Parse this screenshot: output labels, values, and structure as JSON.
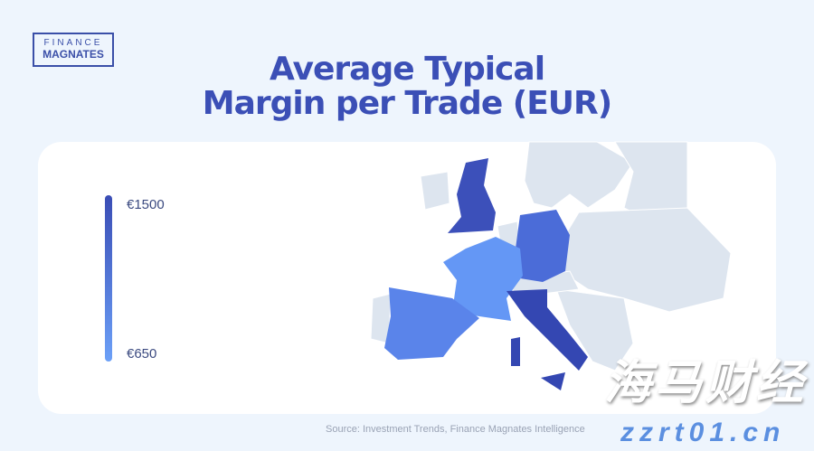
{
  "logo": {
    "line1": "FINANCE",
    "line2": "MAGNATES"
  },
  "title": {
    "line1": "Average Typical",
    "line2": "Margin per Trade (EUR)"
  },
  "legend": {
    "max": "€1500",
    "min": "€650",
    "colors": {
      "high": "#3a4db5",
      "low": "#6ca0f7"
    }
  },
  "countries": [
    {
      "name": "United Kingdom",
      "color": "#3c50ba"
    },
    {
      "name": "Germany",
      "color": "#4b6cd8"
    },
    {
      "name": "France",
      "color": "#6497f5"
    },
    {
      "name": "Spain",
      "color": "#5a84ea"
    },
    {
      "name": "Italy",
      "color": "#3447b2"
    }
  ],
  "source": "Source: Investment Trends, Finance Magnates Intelligence",
  "watermark": {
    "cn": "海马财经",
    "url": "zzrt01.cn"
  }
}
